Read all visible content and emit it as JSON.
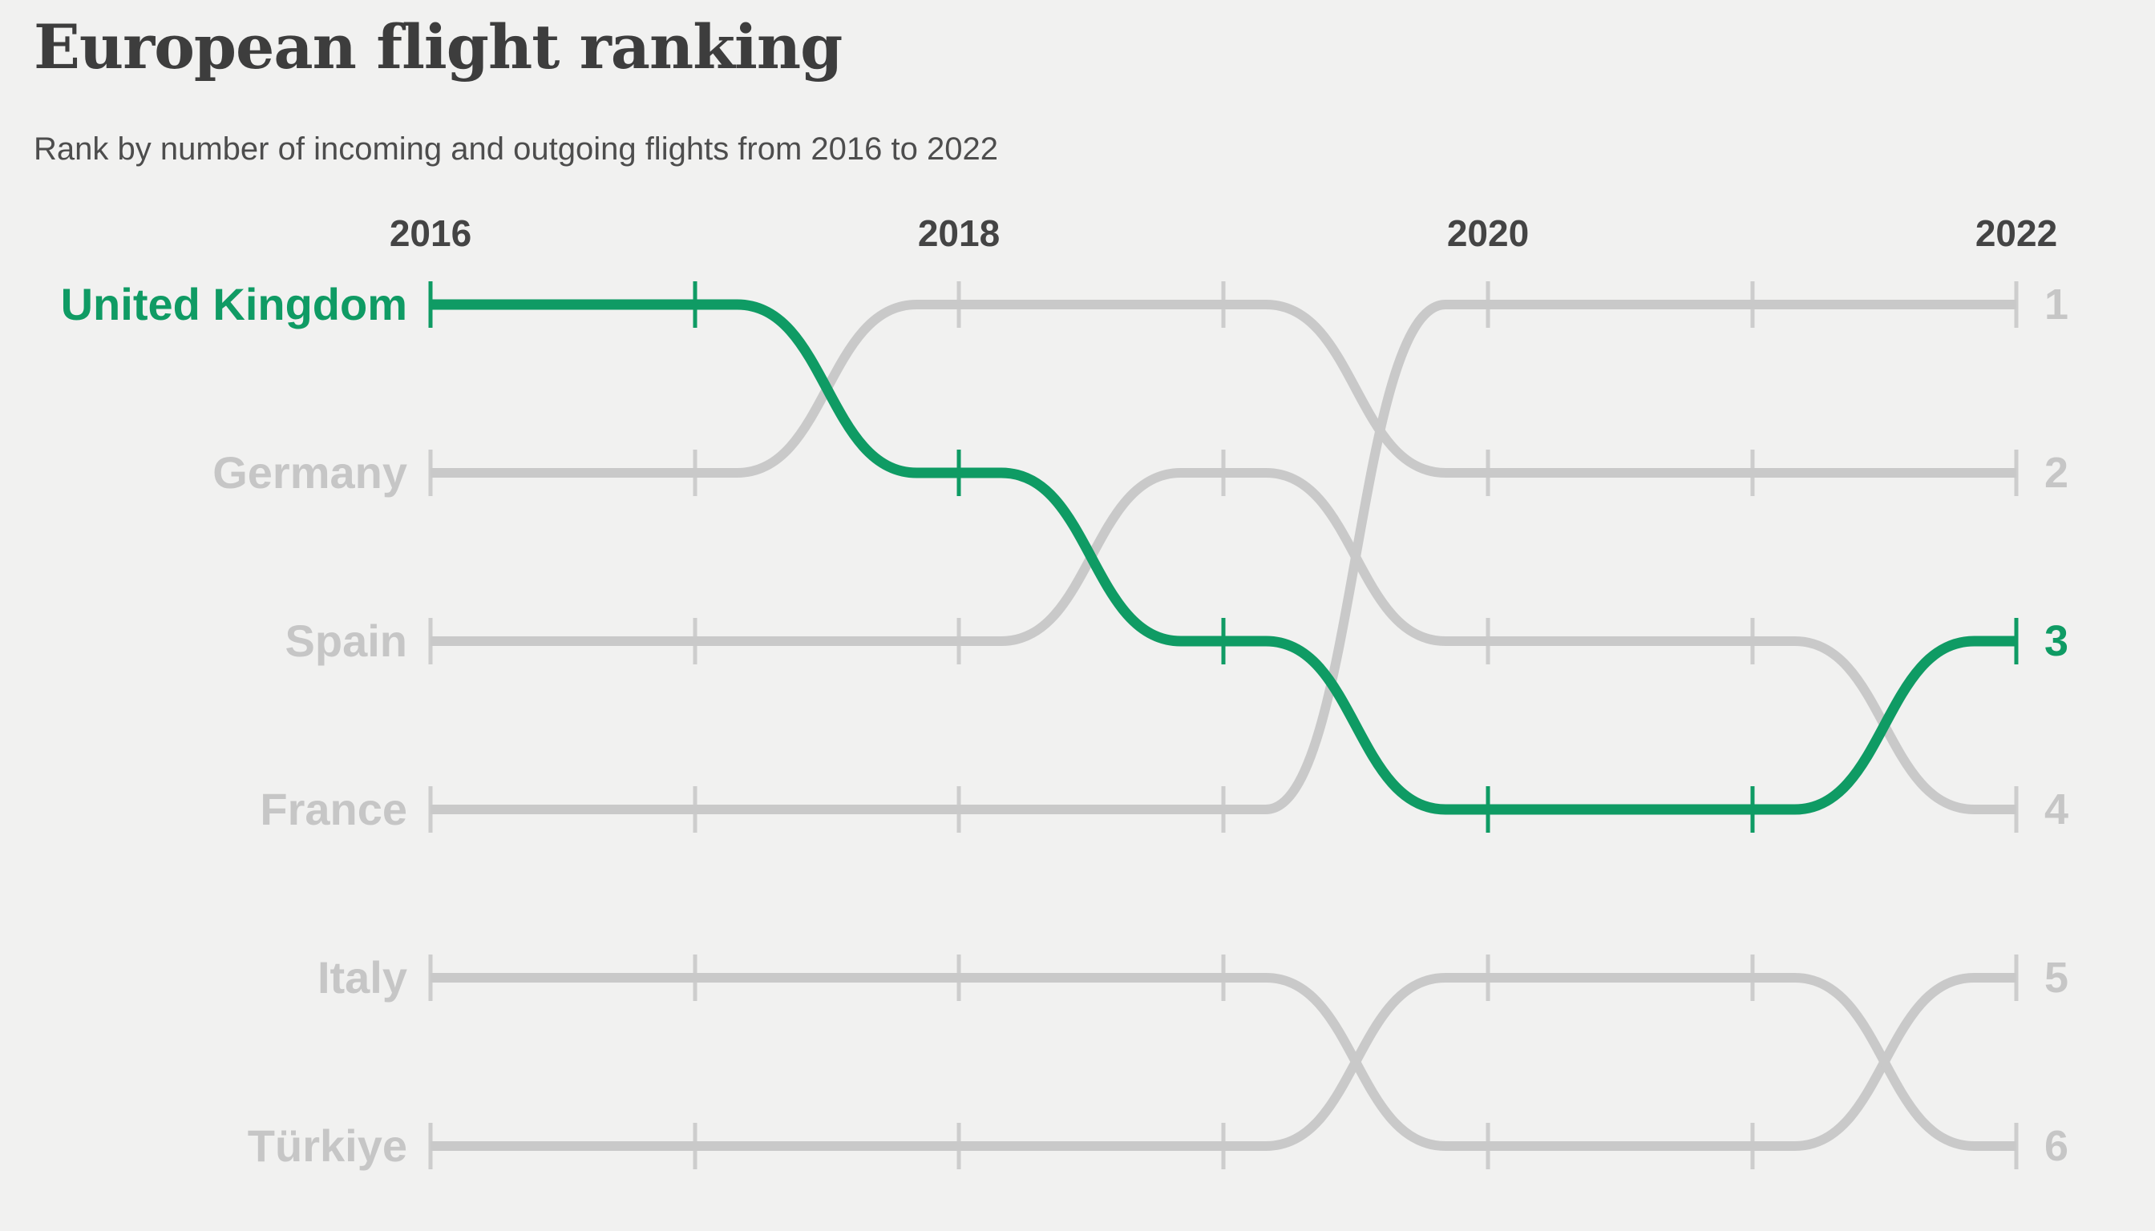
{
  "header": {
    "title": "European flight ranking",
    "subtitle": "Rank by number of incoming and outgoing flights from 2016 to 2022"
  },
  "colors": {
    "background": "#f1f1f0",
    "highlight_green": "#0f9b64",
    "line_gray": "#c9c9c9",
    "tick_gray": "#cdcdcd",
    "label_gray": "#c6c6c6",
    "heading_dark": "#3d3d3d"
  },
  "chart_data": {
    "type": "line",
    "subtype": "bump-rank-chart",
    "x": [
      2016,
      2017,
      2018,
      2019,
      2020,
      2021,
      2022
    ],
    "x_axis_labels": [
      "2016",
      "2018",
      "2020",
      "2022"
    ],
    "rank_axis": [
      "1",
      "2",
      "3",
      "4",
      "5",
      "6"
    ],
    "ylim": [
      1,
      6
    ],
    "grid": "off",
    "legend": "none",
    "series": [
      {
        "name": "United Kingdom",
        "highlight": true,
        "ranks": [
          1,
          1,
          2,
          3,
          4,
          4,
          3
        ]
      },
      {
        "name": "Germany",
        "highlight": false,
        "ranks": [
          2,
          2,
          1,
          1,
          2,
          2,
          2
        ]
      },
      {
        "name": "Spain",
        "highlight": false,
        "ranks": [
          3,
          3,
          3,
          2,
          3,
          3,
          4
        ]
      },
      {
        "name": "France",
        "highlight": false,
        "ranks": [
          4,
          4,
          4,
          4,
          1,
          1,
          1
        ]
      },
      {
        "name": "Italy",
        "highlight": false,
        "ranks": [
          5,
          5,
          5,
          5,
          6,
          6,
          5
        ]
      },
      {
        "name": "Türkiye",
        "highlight": false,
        "ranks": [
          6,
          6,
          6,
          6,
          5,
          5,
          6
        ]
      }
    ],
    "end_rank_labels": {
      "highlighted_rank": "3"
    }
  }
}
